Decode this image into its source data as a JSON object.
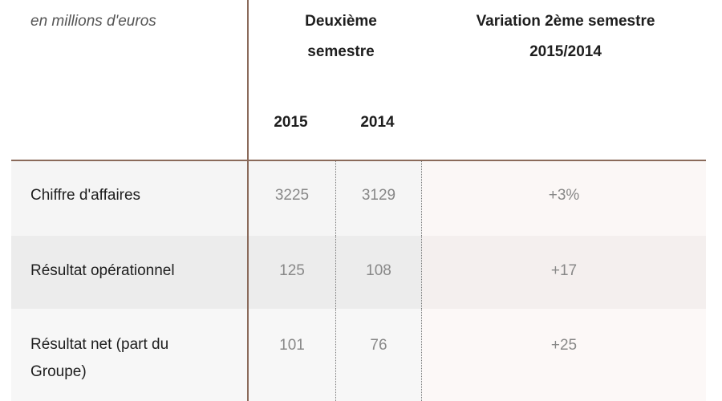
{
  "unit_label": "en millions d'euros",
  "headers": {
    "semester_line1": "Deuxième",
    "semester_line2": "semestre",
    "variation_line1": "Variation 2ème semestre",
    "variation_line2": "2015/2014",
    "year_2015": "2015",
    "year_2014": "2014"
  },
  "rows": [
    {
      "label": "Chiffre d'affaires",
      "v2015": "3225",
      "v2014": "3129",
      "variation": "+3%"
    },
    {
      "label": "Résultat opérationnel",
      "v2015": "125",
      "v2014": "108",
      "variation": "+17"
    },
    {
      "label": "Résultat net (part du Groupe)",
      "v2015": "101",
      "v2014": "76",
      "variation": "+25"
    }
  ],
  "colors": {
    "rule": "#8a6a5a",
    "row_bg": "#f5f5f5",
    "row_alt_bg": "#ececec",
    "value_text": "#888888"
  }
}
